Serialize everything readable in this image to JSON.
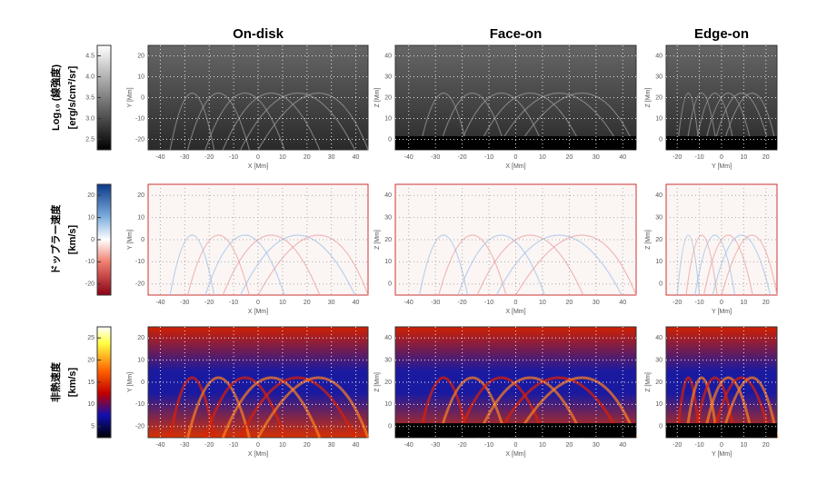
{
  "columns": [
    {
      "title": "On-disk",
      "x_label": "X [Mm]",
      "y_label": "Y [Mm]",
      "x_ticks": [
        "-40",
        "-30",
        "-20",
        "-10",
        "0",
        "10",
        "20",
        "30",
        "40"
      ],
      "y_ticks": [
        "-20",
        "-10",
        "0",
        "10",
        "20"
      ]
    },
    {
      "title": "Face-on",
      "x_label": "X [Mm]",
      "y_label": "Z [Mm]",
      "x_ticks": [
        "-40",
        "-30",
        "-20",
        "-10",
        "0",
        "10",
        "20",
        "30",
        "40"
      ],
      "y_ticks": [
        "0",
        "10",
        "20",
        "30",
        "40"
      ]
    },
    {
      "title": "Edge-on",
      "x_label": "Y [Mm]",
      "y_label": "Z [Mm]",
      "x_ticks": [
        "-20",
        "-10",
        "0",
        "10",
        "20"
      ],
      "y_ticks": [
        "0",
        "10",
        "20",
        "30",
        "40"
      ]
    }
  ],
  "rows": [
    {
      "label": "Log₁₀ (線強度)",
      "unit": "[erg/s/cm²/sr]",
      "colorbar_ticks": [
        "2.5",
        "3.0",
        "3.5",
        "4.0",
        "4.5"
      ]
    },
    {
      "label": "ドップラー速度",
      "unit": "[km/s]",
      "colorbar_ticks": [
        "-20",
        "-10",
        "0",
        "10",
        "20"
      ]
    },
    {
      "label": "非熱速度",
      "unit": "[km/s]",
      "colorbar_ticks": [
        "5",
        "10",
        "15",
        "20",
        "25"
      ]
    }
  ]
}
